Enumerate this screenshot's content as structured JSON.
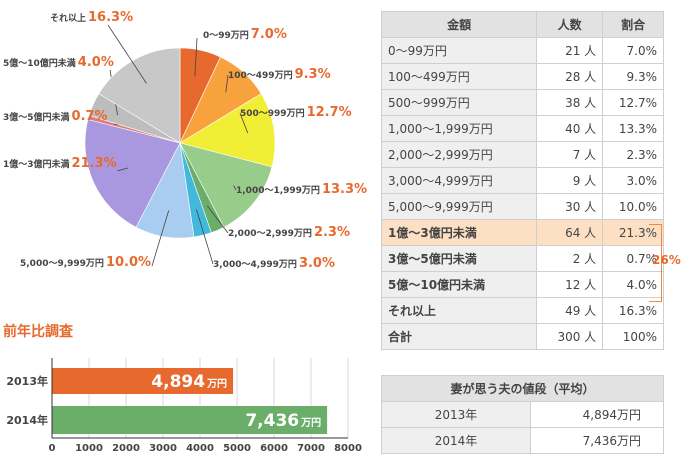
{
  "colors": {
    "accent": "#e8692e",
    "table_highlight": "#fde0c4",
    "bar_2013": "#e8692e",
    "bar_2014": "#6aae6a"
  },
  "pie": {
    "labels": [
      {
        "name": "0～99万円",
        "pct": "7.0%"
      },
      {
        "name": "100～499万円",
        "pct": "9.3%"
      },
      {
        "name": "500～999万円",
        "pct": "12.7%"
      },
      {
        "name": "1,000～1,999万円",
        "pct": "13.3%"
      },
      {
        "name": "2,000～2,999万円",
        "pct": "2.3%"
      },
      {
        "name": "3,000～4,999万円",
        "pct": "3.0%"
      },
      {
        "name": "5,000～9,999万円",
        "pct": "10.0%"
      },
      {
        "name": "1億～3億円未満",
        "pct": "21.3%"
      },
      {
        "name": "3億～5億円未満",
        "pct": "0.7%"
      },
      {
        "name": "5億～10億円未満",
        "pct": "4.0%"
      },
      {
        "name": "それ以上",
        "pct": "16.3%"
      }
    ]
  },
  "chart_data": [
    {
      "type": "pie",
      "labels": [
        "0～99万円",
        "100～499万円",
        "500～999万円",
        "1,000～1,999万円",
        "2,000～2,999万円",
        "3,000～4,999万円",
        "5,000～9,999万円",
        "1億～3億円未満",
        "3億～5億円未満",
        "5億～10億円未満",
        "それ以上"
      ],
      "values": [
        7.0,
        9.3,
        12.7,
        13.3,
        2.3,
        3.0,
        10.0,
        21.3,
        0.7,
        4.0,
        16.3
      ],
      "colors": [
        "#e8692e",
        "#f7a23c",
        "#f2ee36",
        "#98cc8a",
        "#6aae6a",
        "#42b8dc",
        "#a9cdf0",
        "#a997e0",
        "#df7c7c",
        "#bdbdbd",
        "#c8c8c8"
      ]
    },
    {
      "type": "bar",
      "orientation": "horizontal",
      "title": "前年比調査",
      "categories": [
        "2013年",
        "2014年"
      ],
      "values": [
        4894,
        7436
      ],
      "value_labels": [
        "4,894",
        "7,436"
      ],
      "unit": "万円",
      "xlim": [
        0,
        8000
      ],
      "xticks": [
        "0",
        "1000",
        "2000",
        "3000",
        "4000",
        "5000",
        "6000",
        "7000",
        "8000"
      ],
      "colors": [
        "#e8692e",
        "#6aae6a"
      ]
    }
  ],
  "amount_table": {
    "headers": [
      "金額",
      "人数",
      "割合"
    ],
    "rows": [
      {
        "amount": "0～99万円",
        "count": "21 人",
        "pct": "7.0%"
      },
      {
        "amount": "100～499万円",
        "count": "28 人",
        "pct": "9.3%"
      },
      {
        "amount": "500～999万円",
        "count": "38 人",
        "pct": "12.7%"
      },
      {
        "amount": "1,000～1,999万円",
        "count": "40 人",
        "pct": "13.3%"
      },
      {
        "amount": "2,000～2,999万円",
        "count": "7 人",
        "pct": "2.3%"
      },
      {
        "amount": "3,000～4,999万円",
        "count": "9 人",
        "pct": "3.0%"
      },
      {
        "amount": "5,000～9,999万円",
        "count": "30 人",
        "pct": "10.0%"
      },
      {
        "amount": "1億～3億円未満",
        "count": "64 人",
        "pct": "21.3%"
      },
      {
        "amount": "3億～5億円未満",
        "count": "2 人",
        "pct": "0.7%"
      },
      {
        "amount": "5億～10億円未満",
        "count": "12 人",
        "pct": "4.0%"
      },
      {
        "amount": "それ以上",
        "count": "49 人",
        "pct": "16.3%"
      },
      {
        "amount": "合計",
        "count": "300 人",
        "pct": "100%"
      }
    ],
    "bracket_label": "26%"
  },
  "avg_table": {
    "title": "妻が思う夫の値段（平均）",
    "rows": [
      {
        "year": "2013年",
        "value": "4,894万円"
      },
      {
        "year": "2014年",
        "value": "7,436万円"
      }
    ]
  }
}
